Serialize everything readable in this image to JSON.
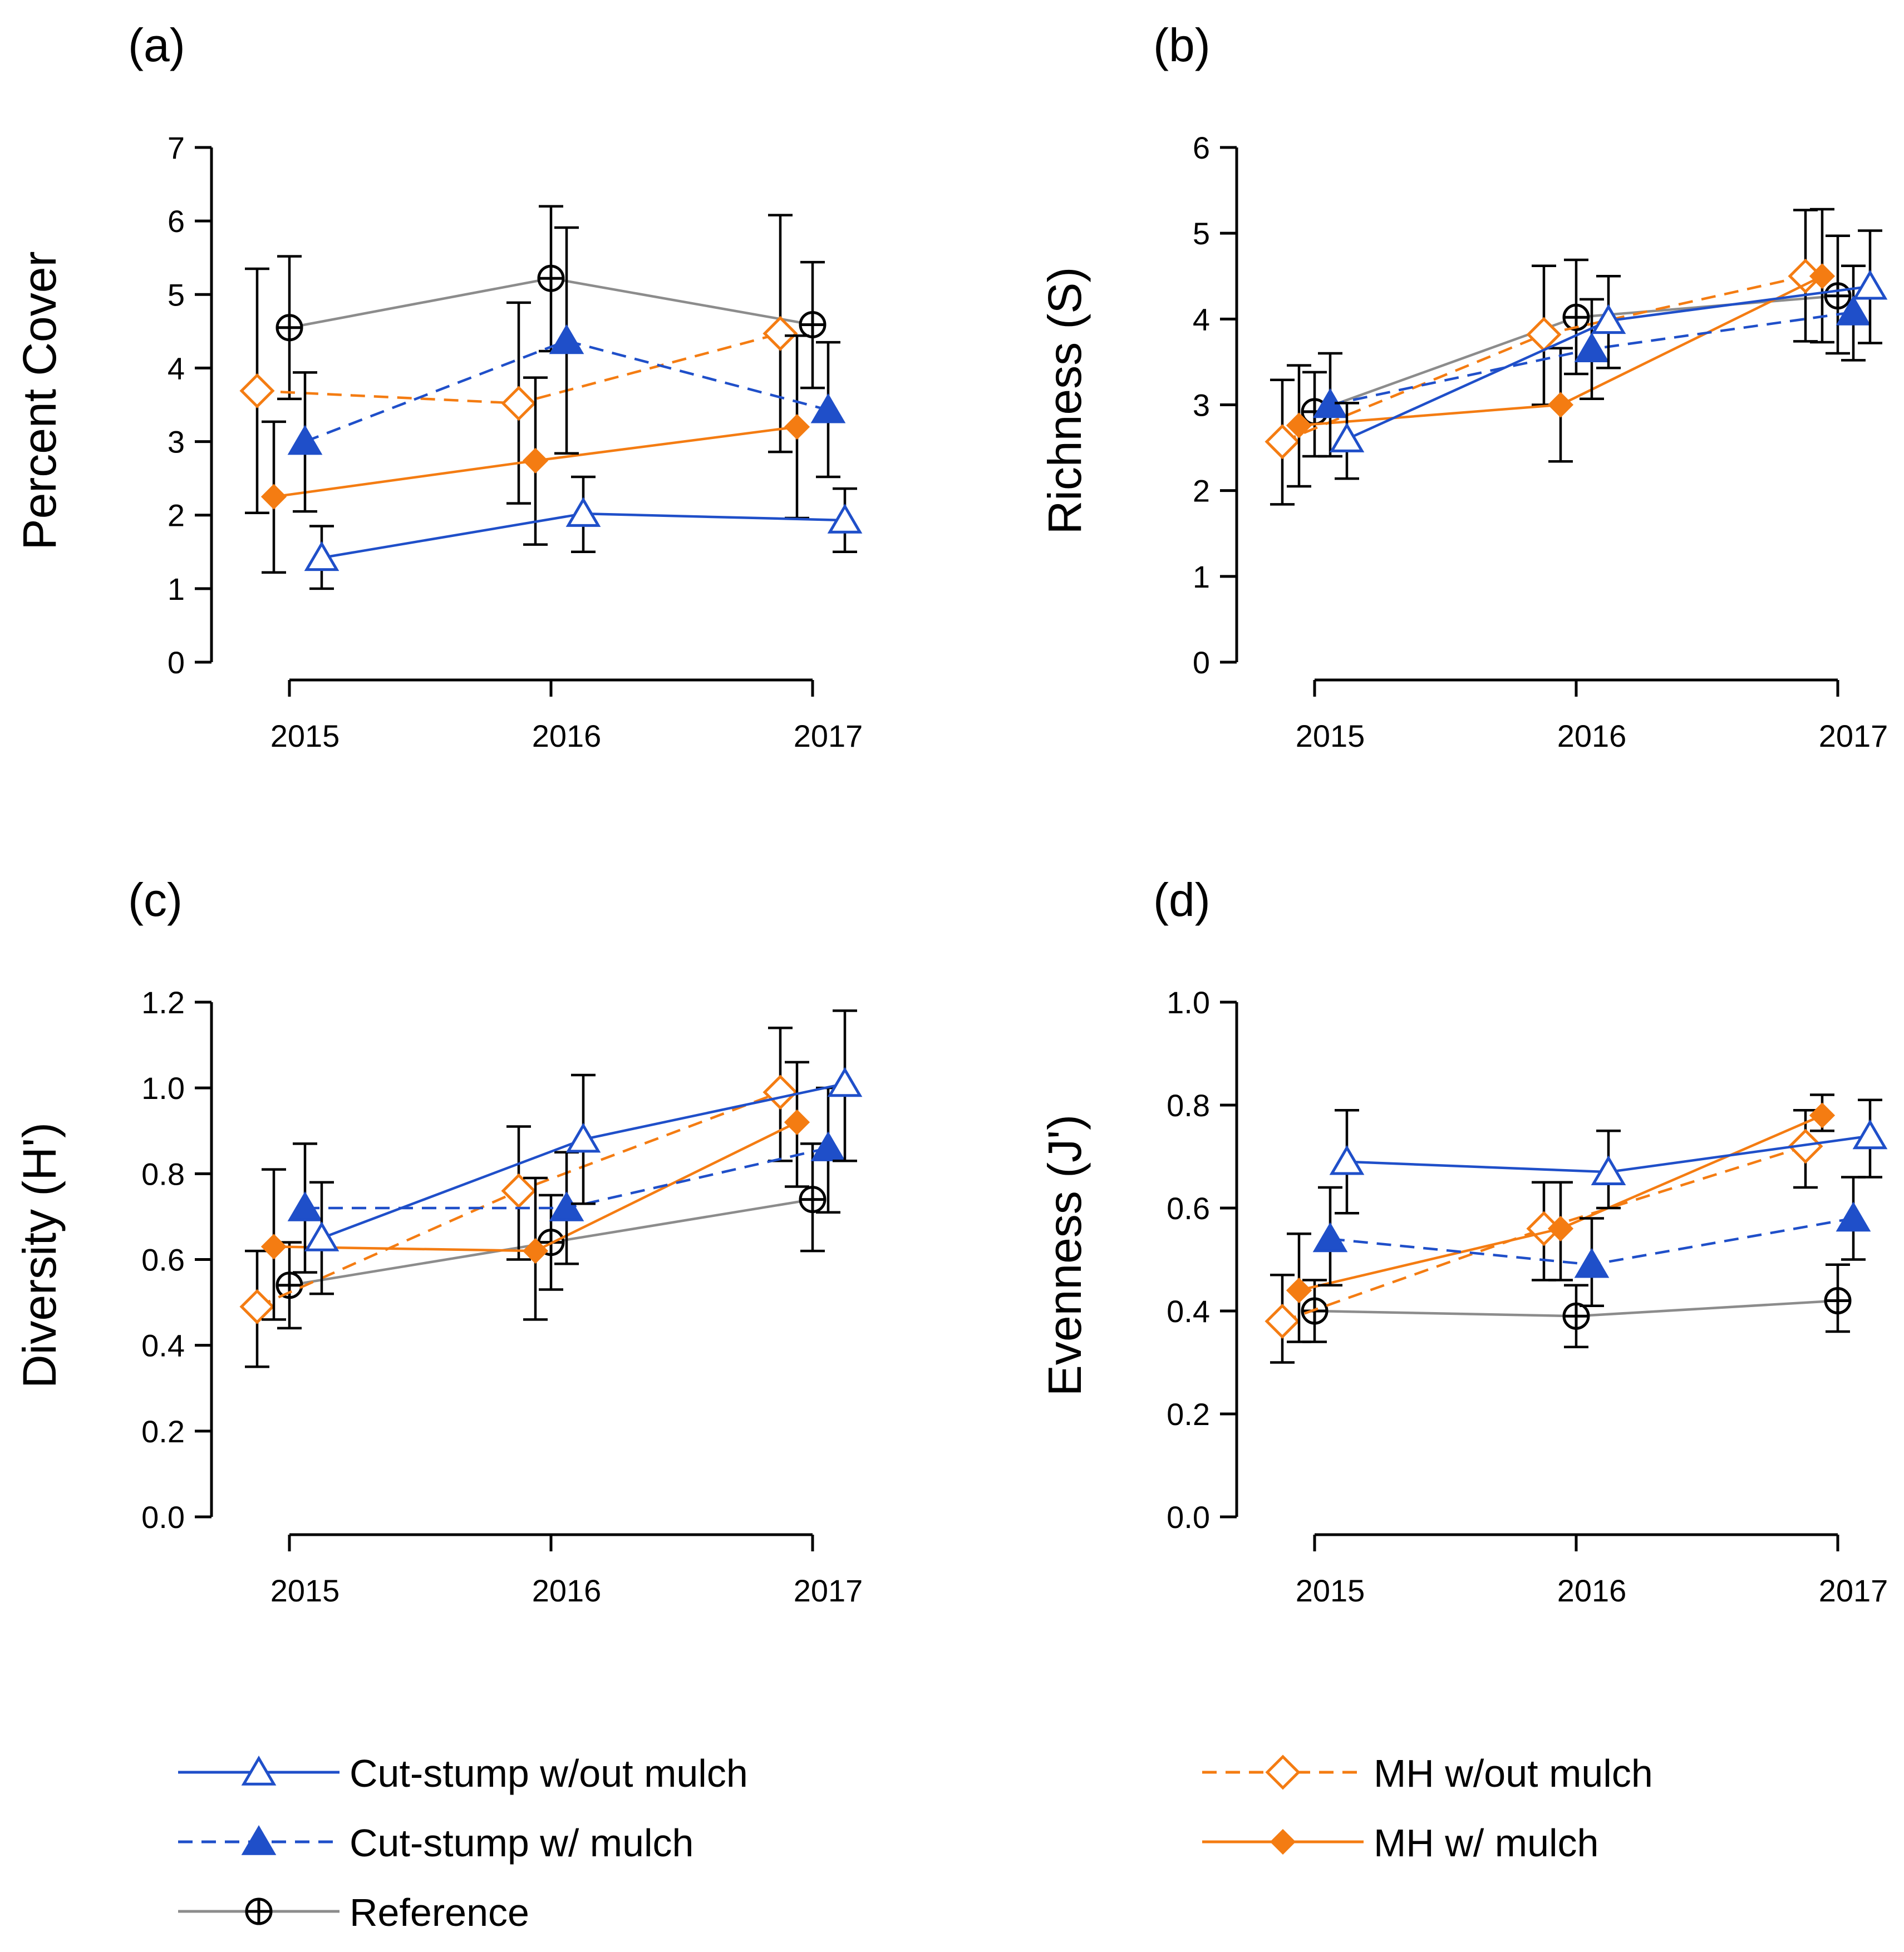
{
  "chart_data": [
    {
      "type": "line",
      "panel": "(a)",
      "ylabel": "Percent Cover",
      "xlabel": "",
      "categories": [
        "2015",
        "2016",
        "2017"
      ],
      "ylim": [
        0,
        7
      ],
      "yticks": [
        "0",
        "1",
        "2",
        "3",
        "4",
        "5",
        "6",
        "7"
      ],
      "series": [
        {
          "key": "cs_no",
          "name": "Cut-stump w/out mulch",
          "values": [
            1.42,
            2.02,
            1.93
          ],
          "lower": [
            1.0,
            1.5,
            1.5
          ],
          "upper": [
            1.85,
            2.52,
            2.36
          ]
        },
        {
          "key": "cs_m",
          "name": "Cut-stump w/ mulch",
          "values": [
            3.0,
            4.37,
            3.43
          ],
          "lower": [
            2.05,
            2.84,
            2.52
          ],
          "upper": [
            3.94,
            5.91,
            4.35
          ]
        },
        {
          "key": "ref",
          "name": "Reference",
          "values": [
            4.55,
            5.22,
            4.59
          ],
          "lower": [
            3.58,
            4.23,
            3.73
          ],
          "upper": [
            5.52,
            6.2,
            5.44
          ]
        },
        {
          "key": "mh_no",
          "name": "MH w/out mulch",
          "values": [
            3.69,
            3.52,
            4.47
          ],
          "lower": [
            2.03,
            2.16,
            2.86
          ],
          "upper": [
            5.35,
            4.89,
            6.08
          ]
        },
        {
          "key": "mh_m",
          "name": "MH w/ mulch",
          "values": [
            2.25,
            2.74,
            3.2
          ],
          "lower": [
            1.22,
            1.6,
            1.96
          ],
          "upper": [
            3.27,
            3.87,
            4.44
          ]
        }
      ]
    },
    {
      "type": "line",
      "panel": "(b)",
      "ylabel": "Richness (S)",
      "xlabel": "",
      "categories": [
        "2015",
        "2016",
        "2017"
      ],
      "ylim": [
        0,
        6
      ],
      "yticks": [
        "0",
        "1",
        "2",
        "3",
        "4",
        "5",
        "6"
      ],
      "series": [
        {
          "key": "cs_no",
          "name": "Cut-stump w/out mulch",
          "values": [
            2.6,
            3.98,
            4.38
          ],
          "lower": [
            2.14,
            3.43,
            3.72
          ],
          "upper": [
            3.02,
            4.5,
            5.03
          ]
        },
        {
          "key": "cs_m",
          "name": "Cut-stump w/ mulch",
          "values": [
            3.0,
            3.65,
            4.08
          ],
          "lower": [
            2.4,
            3.07,
            3.52
          ],
          "upper": [
            3.6,
            4.23,
            4.62
          ]
        },
        {
          "key": "ref",
          "name": "Reference",
          "values": [
            2.92,
            4.02,
            4.27
          ],
          "lower": [
            2.4,
            3.36,
            3.6
          ],
          "upper": [
            3.38,
            4.69,
            4.97
          ]
        },
        {
          "key": "mh_no",
          "name": "MH w/out mulch",
          "values": [
            2.57,
            3.82,
            4.5
          ],
          "lower": [
            1.84,
            3.0,
            3.74
          ],
          "upper": [
            3.29,
            4.62,
            5.27
          ]
        },
        {
          "key": "mh_m",
          "name": "MH w/ mulch",
          "values": [
            2.76,
            3.0,
            4.5
          ],
          "lower": [
            2.05,
            2.34,
            3.73
          ],
          "upper": [
            3.46,
            3.66,
            5.28
          ]
        }
      ]
    },
    {
      "type": "line",
      "panel": "(c)",
      "ylabel": "Diversity (H')",
      "xlabel": "",
      "categories": [
        "2015",
        "2016",
        "2017"
      ],
      "ylim": [
        0,
        1.2
      ],
      "yticks": [
        "0.0",
        "0.2",
        "0.4",
        "0.6",
        "0.8",
        "1.0",
        "1.2"
      ],
      "series": [
        {
          "key": "cs_no",
          "name": "Cut-stump w/out mulch",
          "values": [
            0.65,
            0.88,
            1.01
          ],
          "lower": [
            0.52,
            0.73,
            0.83
          ],
          "upper": [
            0.78,
            1.03,
            1.18
          ]
        },
        {
          "key": "cs_m",
          "name": "Cut-stump w/ mulch",
          "values": [
            0.72,
            0.72,
            0.86
          ],
          "lower": [
            0.57,
            0.59,
            0.71
          ],
          "upper": [
            0.87,
            0.85,
            1.0
          ]
        },
        {
          "key": "ref",
          "name": "Reference",
          "values": [
            0.54,
            0.64,
            0.74
          ],
          "lower": [
            0.44,
            0.53,
            0.62
          ],
          "upper": [
            0.64,
            0.75,
            0.87
          ]
        },
        {
          "key": "mh_no",
          "name": "MH w/out mulch",
          "values": [
            0.49,
            0.76,
            0.99
          ],
          "lower": [
            0.35,
            0.6,
            0.83
          ],
          "upper": [
            0.62,
            0.91,
            1.14
          ]
        },
        {
          "key": "mh_m",
          "name": "MH w/ mulch",
          "values": [
            0.63,
            0.62,
            0.92
          ],
          "lower": [
            0.46,
            0.46,
            0.77
          ],
          "upper": [
            0.81,
            0.79,
            1.06
          ]
        }
      ]
    },
    {
      "type": "line",
      "panel": "(d)",
      "ylabel": "Evenness (J')",
      "xlabel": "",
      "categories": [
        "2015",
        "2016",
        "2017"
      ],
      "ylim": [
        0,
        1.0
      ],
      "yticks": [
        "0.0",
        "0.2",
        "0.4",
        "0.6",
        "0.8",
        "1.0"
      ],
      "series": [
        {
          "key": "cs_no",
          "name": "Cut-stump w/out mulch",
          "values": [
            0.69,
            0.67,
            0.74
          ],
          "lower": [
            0.59,
            0.6,
            0.66
          ],
          "upper": [
            0.79,
            0.75,
            0.81
          ]
        },
        {
          "key": "cs_m",
          "name": "Cut-stump w/ mulch",
          "values": [
            0.54,
            0.49,
            0.58
          ],
          "lower": [
            0.45,
            0.41,
            0.5
          ],
          "upper": [
            0.64,
            0.58,
            0.66
          ]
        },
        {
          "key": "ref",
          "name": "Reference",
          "values": [
            0.4,
            0.39,
            0.42
          ],
          "lower": [
            0.34,
            0.33,
            0.36
          ],
          "upper": [
            0.46,
            0.45,
            0.49
          ]
        },
        {
          "key": "mh_no",
          "name": "MH w/out mulch",
          "values": [
            0.38,
            0.56,
            0.72
          ],
          "lower": [
            0.3,
            0.46,
            0.64
          ],
          "upper": [
            0.47,
            0.65,
            0.79
          ]
        },
        {
          "key": "mh_m",
          "name": "MH w/ mulch",
          "values": [
            0.44,
            0.56,
            0.78
          ],
          "lower": [
            0.34,
            0.46,
            0.75
          ],
          "upper": [
            0.55,
            0.65,
            0.82
          ]
        }
      ]
    }
  ],
  "legend": [
    {
      "key": "cs_no",
      "label": "Cut-stump w/out mulch"
    },
    {
      "key": "cs_m",
      "label": "Cut-stump w/ mulch"
    },
    {
      "key": "ref",
      "label": "Reference"
    },
    {
      "key": "mh_no",
      "label": "MH w/out mulch"
    },
    {
      "key": "mh_m",
      "label": "MH w/ mulch"
    }
  ],
  "series_styles": {
    "cs_no": {
      "color": "#1f4fc9",
      "dash": "solid",
      "marker": "triangle-open"
    },
    "cs_m": {
      "color": "#1f4fc9",
      "dash": "dashed",
      "marker": "triangle-filled"
    },
    "ref": {
      "color": "#8c8c8c",
      "marker_color": "#000000",
      "dash": "solid",
      "marker": "circle-plus"
    },
    "mh_no": {
      "color": "#f47c12",
      "dash": "dashed",
      "marker": "diamond-open"
    },
    "mh_m": {
      "color": "#f47c12",
      "dash": "solid",
      "marker": "diamond-filled"
    }
  }
}
